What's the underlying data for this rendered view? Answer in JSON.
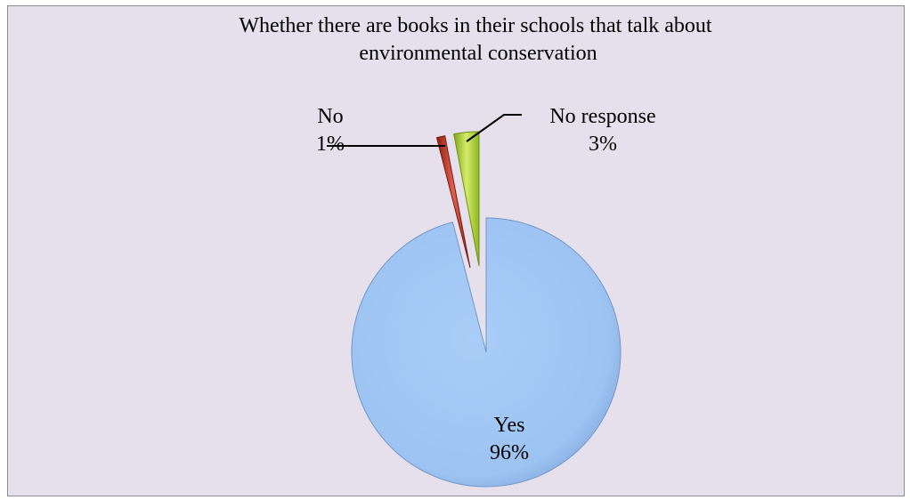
{
  "chart_data": {
    "type": "pie",
    "title_lines": [
      "Whether there are books in their schools that talk about",
      "environmental conservation"
    ],
    "exploded": true,
    "start_angle_deg": 0,
    "slices": [
      {
        "name": "Yes",
        "value": 96,
        "label": "96%",
        "color": "#9dc3f2"
      },
      {
        "name": "No",
        "value": 1,
        "label": "1%",
        "color": "#c0392b"
      },
      {
        "name": "No response",
        "value": 3,
        "label": "3%",
        "color": "#a6cf2e"
      }
    ]
  }
}
